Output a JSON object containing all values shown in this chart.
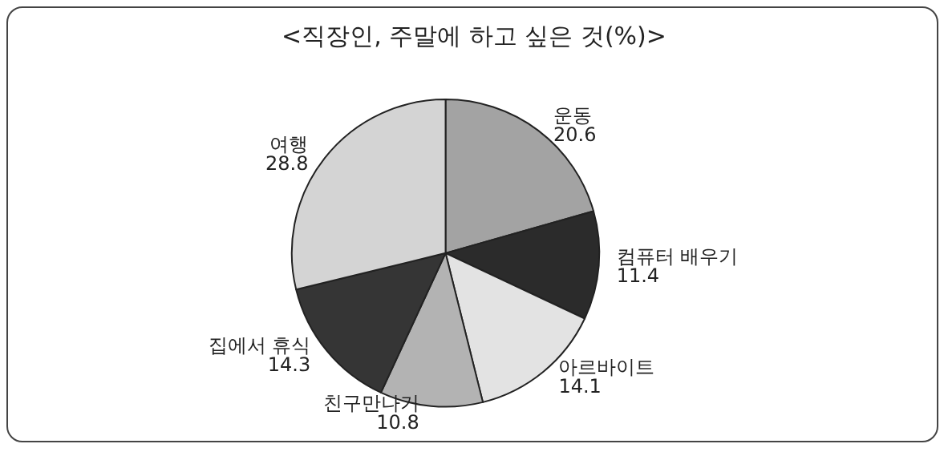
{
  "chart_data": {
    "type": "pie",
    "title": "<직장인, 주말에 하고 싶은 것(%)>",
    "categories": [
      "운동",
      "컴퓨터 배우기",
      "아르바이트",
      "친구만나기",
      "집에서 휴식",
      "여행"
    ],
    "values": [
      20.6,
      11.4,
      14.1,
      10.8,
      14.3,
      28.8
    ],
    "colors": [
      "#a3a3a3",
      "#2b2b2b",
      "#e3e3e3",
      "#b3b3b3",
      "#353535",
      "#d4d4d4"
    ],
    "data_labels": true,
    "legend": false
  }
}
